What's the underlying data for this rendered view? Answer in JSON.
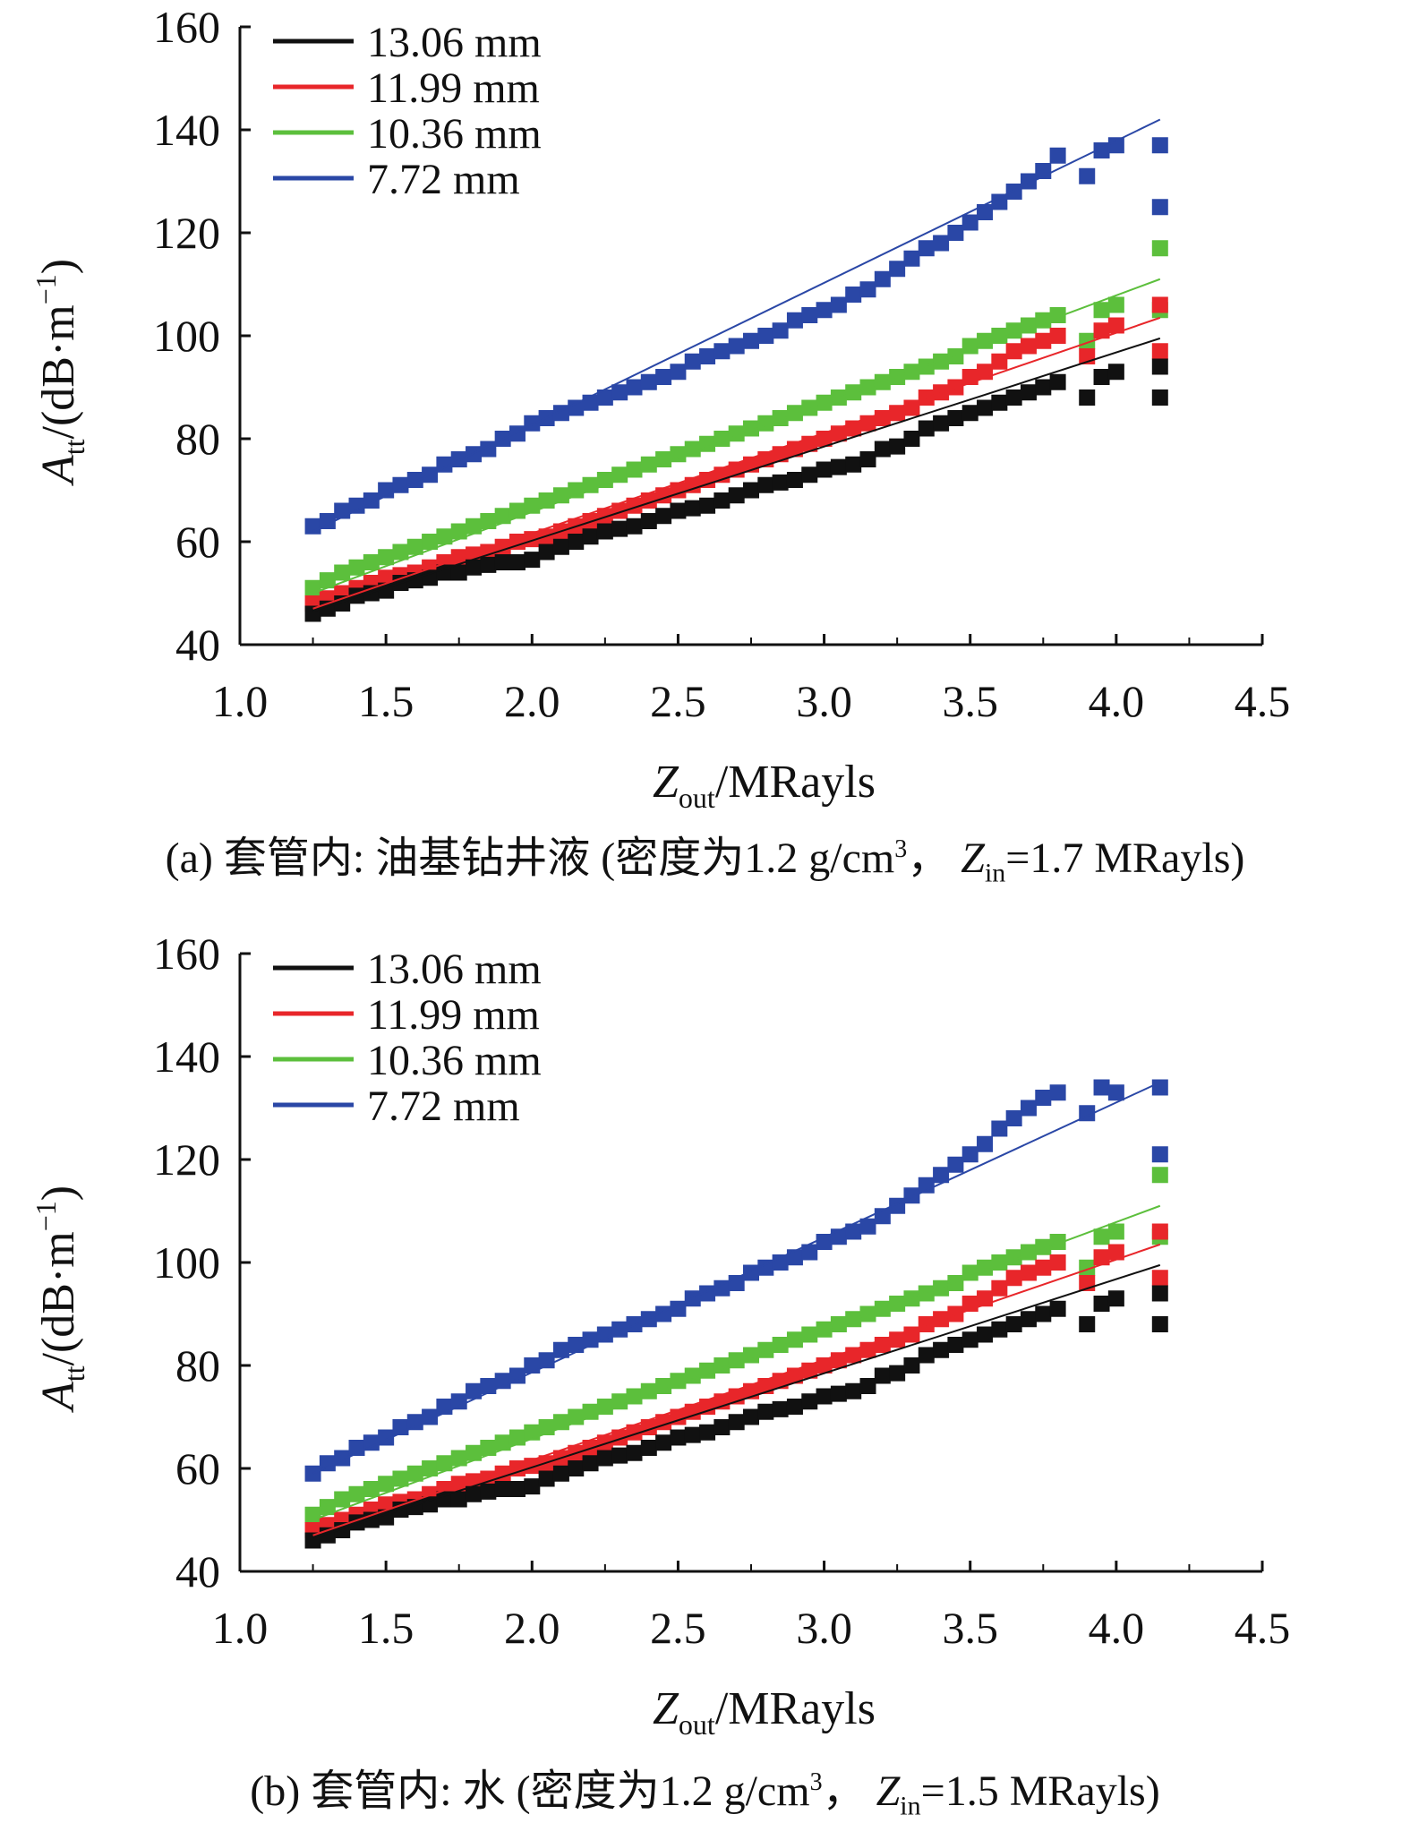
{
  "chart_data": [
    {
      "type": "scatter",
      "caption": {
        "prefix": "(a) 套管内: 油基钻井液 (密度为1.2 g/cm",
        "sup": "3",
        "mid": "， ",
        "zvar": "Z",
        "zsub": "in",
        "suffix": "=1.7 MRayls)"
      },
      "ylabel": {
        "var": "A",
        "sub": "tt",
        "unit": "/(dB·m",
        "exp": "−1",
        "close": ")"
      },
      "xlabel": {
        "var": "Z",
        "sub": "out",
        "unit": "/MRayls"
      },
      "xlim": [
        1.0,
        4.5
      ],
      "ylim": [
        40,
        160
      ],
      "xticks": [
        "1.0",
        "1.5",
        "2.0",
        "2.5",
        "3.0",
        "3.5",
        "4.0",
        "4.5"
      ],
      "yticks": [
        "40",
        "60",
        "80",
        "100",
        "120",
        "140",
        "160"
      ],
      "legend_position": "top-left",
      "series": [
        {
          "name": "13.06 mm",
          "color": "#111111",
          "fit": {
            "x": [
              1.25,
              4.15
            ],
            "y": [
              46.5,
              99.5
            ]
          },
          "x": [
            1.25,
            1.3,
            1.35,
            1.4,
            1.45,
            1.5,
            1.55,
            1.6,
            1.65,
            1.7,
            1.75,
            1.8,
            1.85,
            1.9,
            1.95,
            2.0,
            2.05,
            2.1,
            2.15,
            2.2,
            2.25,
            2.3,
            2.35,
            2.4,
            2.45,
            2.5,
            2.55,
            2.6,
            2.65,
            2.7,
            2.75,
            2.8,
            2.85,
            2.9,
            2.95,
            3.0,
            3.05,
            3.1,
            3.15,
            3.2,
            3.25,
            3.3,
            3.35,
            3.4,
            3.45,
            3.5,
            3.55,
            3.6,
            3.65,
            3.7,
            3.75,
            3.8,
            3.9,
            3.95,
            4.0,
            4.15,
            4.15
          ],
          "y": [
            46,
            47,
            48,
            49.5,
            50,
            50.5,
            52,
            52.5,
            53,
            54,
            54,
            55,
            55.5,
            56,
            56,
            56.5,
            58,
            59,
            60,
            61,
            62,
            62.5,
            63,
            64,
            65,
            66,
            66.5,
            67,
            68,
            69,
            70,
            71,
            71.5,
            72,
            73,
            74,
            74.5,
            75,
            76,
            78,
            78.5,
            80,
            82,
            83,
            84,
            85,
            86,
            87,
            88,
            89,
            90,
            91,
            88,
            92,
            93,
            94,
            88
          ]
        },
        {
          "name": "11.99 mm",
          "color": "#e8262a",
          "fit": {
            "x": [
              1.25,
              4.15
            ],
            "y": [
              47,
              103.5
            ]
          },
          "x": [
            1.25,
            1.3,
            1.35,
            1.4,
            1.45,
            1.5,
            1.55,
            1.6,
            1.65,
            1.7,
            1.75,
            1.8,
            1.85,
            1.9,
            1.95,
            2.0,
            2.05,
            2.1,
            2.15,
            2.2,
            2.25,
            2.3,
            2.35,
            2.4,
            2.45,
            2.5,
            2.55,
            2.6,
            2.65,
            2.7,
            2.75,
            2.8,
            2.85,
            2.9,
            2.95,
            3.0,
            3.05,
            3.1,
            3.15,
            3.2,
            3.25,
            3.3,
            3.35,
            3.4,
            3.45,
            3.5,
            3.55,
            3.6,
            3.65,
            3.7,
            3.75,
            3.8,
            3.9,
            3.95,
            4.0,
            4.15,
            4.15
          ],
          "y": [
            48,
            49,
            50,
            51,
            52,
            53,
            53.5,
            54,
            55,
            56,
            57,
            57.5,
            58,
            59,
            60,
            60.5,
            61,
            62,
            63,
            64,
            65,
            66,
            67,
            68,
            69,
            70,
            71,
            72,
            73,
            74,
            75,
            76,
            77,
            78,
            79,
            80,
            81,
            82,
            83,
            84,
            85,
            86,
            88,
            89,
            90,
            92,
            93,
            95,
            97,
            98,
            99,
            100,
            96,
            101,
            102,
            106,
            97
          ]
        },
        {
          "name": "10.36 mm",
          "color": "#5cbf3c",
          "fit": {
            "x": [
              1.25,
              4.15
            ],
            "y": [
              50,
              111
            ]
          },
          "x": [
            1.25,
            1.3,
            1.35,
            1.4,
            1.45,
            1.5,
            1.55,
            1.6,
            1.65,
            1.7,
            1.75,
            1.8,
            1.85,
            1.9,
            1.95,
            2.0,
            2.05,
            2.1,
            2.15,
            2.2,
            2.25,
            2.3,
            2.35,
            2.4,
            2.45,
            2.5,
            2.55,
            2.6,
            2.65,
            2.7,
            2.75,
            2.8,
            2.85,
            2.9,
            2.95,
            3.0,
            3.05,
            3.1,
            3.15,
            3.2,
            3.25,
            3.3,
            3.35,
            3.4,
            3.45,
            3.5,
            3.55,
            3.6,
            3.65,
            3.7,
            3.75,
            3.8,
            3.9,
            3.95,
            4.0,
            4.15,
            4.15
          ],
          "y": [
            51,
            52.5,
            54,
            55,
            56,
            57,
            58,
            59,
            60,
            61,
            62,
            63,
            64,
            65,
            66,
            67,
            68,
            69,
            70,
            71,
            72,
            73,
            74,
            75,
            76,
            77,
            78,
            79,
            80,
            81,
            82,
            83,
            84,
            85,
            86,
            87,
            88,
            89,
            90,
            91,
            92,
            93,
            94,
            95,
            96,
            98,
            99,
            100,
            101,
            102,
            103,
            104,
            99,
            105,
            106,
            117,
            105
          ]
        },
        {
          "name": "7.72 mm",
          "color": "#2a47a6",
          "fit": {
            "x": [
              1.25,
              4.15
            ],
            "y": [
              62,
              142
            ]
          },
          "x": [
            1.25,
            1.3,
            1.35,
            1.4,
            1.45,
            1.5,
            1.55,
            1.6,
            1.65,
            1.7,
            1.75,
            1.8,
            1.85,
            1.9,
            1.95,
            2.0,
            2.05,
            2.1,
            2.15,
            2.2,
            2.25,
            2.3,
            2.35,
            2.4,
            2.45,
            2.5,
            2.55,
            2.6,
            2.65,
            2.7,
            2.75,
            2.8,
            2.85,
            2.9,
            2.95,
            3.0,
            3.05,
            3.1,
            3.15,
            3.2,
            3.25,
            3.3,
            3.35,
            3.4,
            3.45,
            3.5,
            3.55,
            3.6,
            3.65,
            3.7,
            3.75,
            3.8,
            3.9,
            3.95,
            4.0,
            4.15,
            4.15
          ],
          "y": [
            63,
            64,
            66,
            67,
            68,
            70,
            71,
            72,
            73,
            75,
            76,
            77,
            78,
            80,
            81,
            83,
            84,
            85,
            86,
            87,
            88,
            89,
            90,
            91,
            92,
            93,
            95,
            96,
            97,
            98,
            99,
            100,
            101,
            103,
            104,
            105,
            106,
            108,
            109,
            111,
            113,
            115,
            117,
            118,
            120,
            122,
            124,
            126,
            128,
            130,
            132,
            135,
            131,
            136,
            137,
            137,
            125
          ]
        }
      ]
    },
    {
      "type": "scatter",
      "caption": {
        "prefix": "(b) 套管内: 水 (密度为1.2 g/cm",
        "sup": "3",
        "mid": "， ",
        "zvar": "Z",
        "zsub": "in",
        "suffix": "=1.5 MRayls)"
      },
      "ylabel": {
        "var": "A",
        "sub": "tt",
        "unit": "/(dB·m",
        "exp": "−1",
        "close": ")"
      },
      "xlabel": {
        "var": "Z",
        "sub": "out",
        "unit": "/MRayls"
      },
      "xlim": [
        1.0,
        4.5
      ],
      "ylim": [
        40,
        160
      ],
      "xticks": [
        "1.0",
        "1.5",
        "2.0",
        "2.5",
        "3.0",
        "3.5",
        "4.0",
        "4.5"
      ],
      "yticks": [
        "40",
        "60",
        "80",
        "100",
        "120",
        "140",
        "160"
      ],
      "legend_position": "top-left",
      "series": [
        {
          "name": "13.06 mm",
          "color": "#111111",
          "fit": {
            "x": [
              1.25,
              4.15
            ],
            "y": [
              46.5,
              99.5
            ]
          },
          "x": [
            1.25,
            1.3,
            1.35,
            1.4,
            1.45,
            1.5,
            1.55,
            1.6,
            1.65,
            1.7,
            1.75,
            1.8,
            1.85,
            1.9,
            1.95,
            2.0,
            2.05,
            2.1,
            2.15,
            2.2,
            2.25,
            2.3,
            2.35,
            2.4,
            2.45,
            2.5,
            2.55,
            2.6,
            2.65,
            2.7,
            2.75,
            2.8,
            2.85,
            2.9,
            2.95,
            3.0,
            3.05,
            3.1,
            3.15,
            3.2,
            3.25,
            3.3,
            3.35,
            3.4,
            3.45,
            3.5,
            3.55,
            3.6,
            3.65,
            3.7,
            3.75,
            3.8,
            3.9,
            3.95,
            4.0,
            4.15,
            4.15
          ],
          "y": [
            46,
            47,
            48,
            49.5,
            50,
            50.5,
            52,
            52.5,
            53,
            54,
            54,
            55,
            55.5,
            56,
            56,
            56.5,
            58,
            59,
            60,
            61,
            62,
            62.5,
            63,
            64,
            65,
            66,
            66.5,
            67,
            68,
            69,
            70,
            71,
            71.5,
            72,
            73,
            74,
            74.5,
            75,
            76,
            78,
            78.5,
            80,
            82,
            83,
            84,
            85,
            86,
            87,
            88,
            89,
            90,
            91,
            88,
            92,
            93,
            94,
            88
          ]
        },
        {
          "name": "11.99 mm",
          "color": "#e8262a",
          "fit": {
            "x": [
              1.25,
              4.15
            ],
            "y": [
              47,
              103.5
            ]
          },
          "x": [
            1.25,
            1.3,
            1.35,
            1.4,
            1.45,
            1.5,
            1.55,
            1.6,
            1.65,
            1.7,
            1.75,
            1.8,
            1.85,
            1.9,
            1.95,
            2.0,
            2.05,
            2.1,
            2.15,
            2.2,
            2.25,
            2.3,
            2.35,
            2.4,
            2.45,
            2.5,
            2.55,
            2.6,
            2.65,
            2.7,
            2.75,
            2.8,
            2.85,
            2.9,
            2.95,
            3.0,
            3.05,
            3.1,
            3.15,
            3.2,
            3.25,
            3.3,
            3.35,
            3.4,
            3.45,
            3.5,
            3.55,
            3.6,
            3.65,
            3.7,
            3.75,
            3.8,
            3.9,
            3.95,
            4.0,
            4.15,
            4.15
          ],
          "y": [
            48,
            49,
            50,
            51,
            52,
            53,
            53.5,
            54,
            55,
            56,
            57,
            57.5,
            58,
            59,
            60,
            60.5,
            61,
            62,
            63,
            64,
            65,
            66,
            67,
            68,
            69,
            70,
            71,
            72,
            73,
            74,
            75,
            76,
            77,
            78,
            79,
            80,
            81,
            82,
            83,
            84,
            85,
            86,
            88,
            89,
            90,
            92,
            93,
            95,
            97,
            98,
            99,
            100,
            96,
            101,
            102,
            106,
            97
          ]
        },
        {
          "name": "10.36 mm",
          "color": "#5cbf3c",
          "fit": {
            "x": [
              1.25,
              4.15
            ],
            "y": [
              50,
              111
            ]
          },
          "x": [
            1.25,
            1.3,
            1.35,
            1.4,
            1.45,
            1.5,
            1.55,
            1.6,
            1.65,
            1.7,
            1.75,
            1.8,
            1.85,
            1.9,
            1.95,
            2.0,
            2.05,
            2.1,
            2.15,
            2.2,
            2.25,
            2.3,
            2.35,
            2.4,
            2.45,
            2.5,
            2.55,
            2.6,
            2.65,
            2.7,
            2.75,
            2.8,
            2.85,
            2.9,
            2.95,
            3.0,
            3.05,
            3.1,
            3.15,
            3.2,
            3.25,
            3.3,
            3.35,
            3.4,
            3.45,
            3.5,
            3.55,
            3.6,
            3.65,
            3.7,
            3.75,
            3.8,
            3.9,
            3.95,
            4.0,
            4.15,
            4.15
          ],
          "y": [
            51,
            52.5,
            54,
            55,
            56,
            57,
            58,
            59,
            60,
            61,
            62,
            63,
            64,
            65,
            66,
            67,
            68,
            69,
            70,
            71,
            72,
            73,
            74,
            75,
            76,
            77,
            78,
            79,
            80,
            81,
            82,
            83,
            84,
            85,
            86,
            87,
            88,
            89,
            90,
            91,
            92,
            93,
            94,
            95,
            96,
            98,
            99,
            100,
            101,
            102,
            103,
            104,
            99,
            105,
            106,
            117,
            105
          ]
        },
        {
          "name": "7.72 mm",
          "color": "#2a47a6",
          "fit": {
            "x": [
              1.25,
              4.15
            ],
            "y": [
              59,
              135
            ]
          },
          "x": [
            1.25,
            1.3,
            1.35,
            1.4,
            1.45,
            1.5,
            1.55,
            1.6,
            1.65,
            1.7,
            1.75,
            1.8,
            1.85,
            1.9,
            1.95,
            2.0,
            2.05,
            2.1,
            2.15,
            2.2,
            2.25,
            2.3,
            2.35,
            2.4,
            2.45,
            2.5,
            2.55,
            2.6,
            2.65,
            2.7,
            2.75,
            2.8,
            2.85,
            2.9,
            2.95,
            3.0,
            3.05,
            3.1,
            3.15,
            3.2,
            3.25,
            3.3,
            3.35,
            3.4,
            3.45,
            3.5,
            3.55,
            3.6,
            3.65,
            3.7,
            3.75,
            3.8,
            3.9,
            3.95,
            4.0,
            4.15,
            4.15
          ],
          "y": [
            59,
            61,
            62,
            64,
            65,
            66,
            68,
            69,
            70,
            72,
            73,
            75,
            76,
            77,
            78,
            80,
            81,
            83,
            84,
            85,
            86,
            87,
            88,
            89,
            90,
            91,
            93,
            94,
            95,
            96,
            98,
            99,
            100,
            101,
            102,
            104,
            105,
            106,
            107,
            109,
            111,
            113,
            115,
            117,
            119,
            121,
            123,
            126,
            128,
            130,
            132,
            133,
            129,
            134,
            133,
            134,
            121
          ]
        }
      ]
    }
  ]
}
